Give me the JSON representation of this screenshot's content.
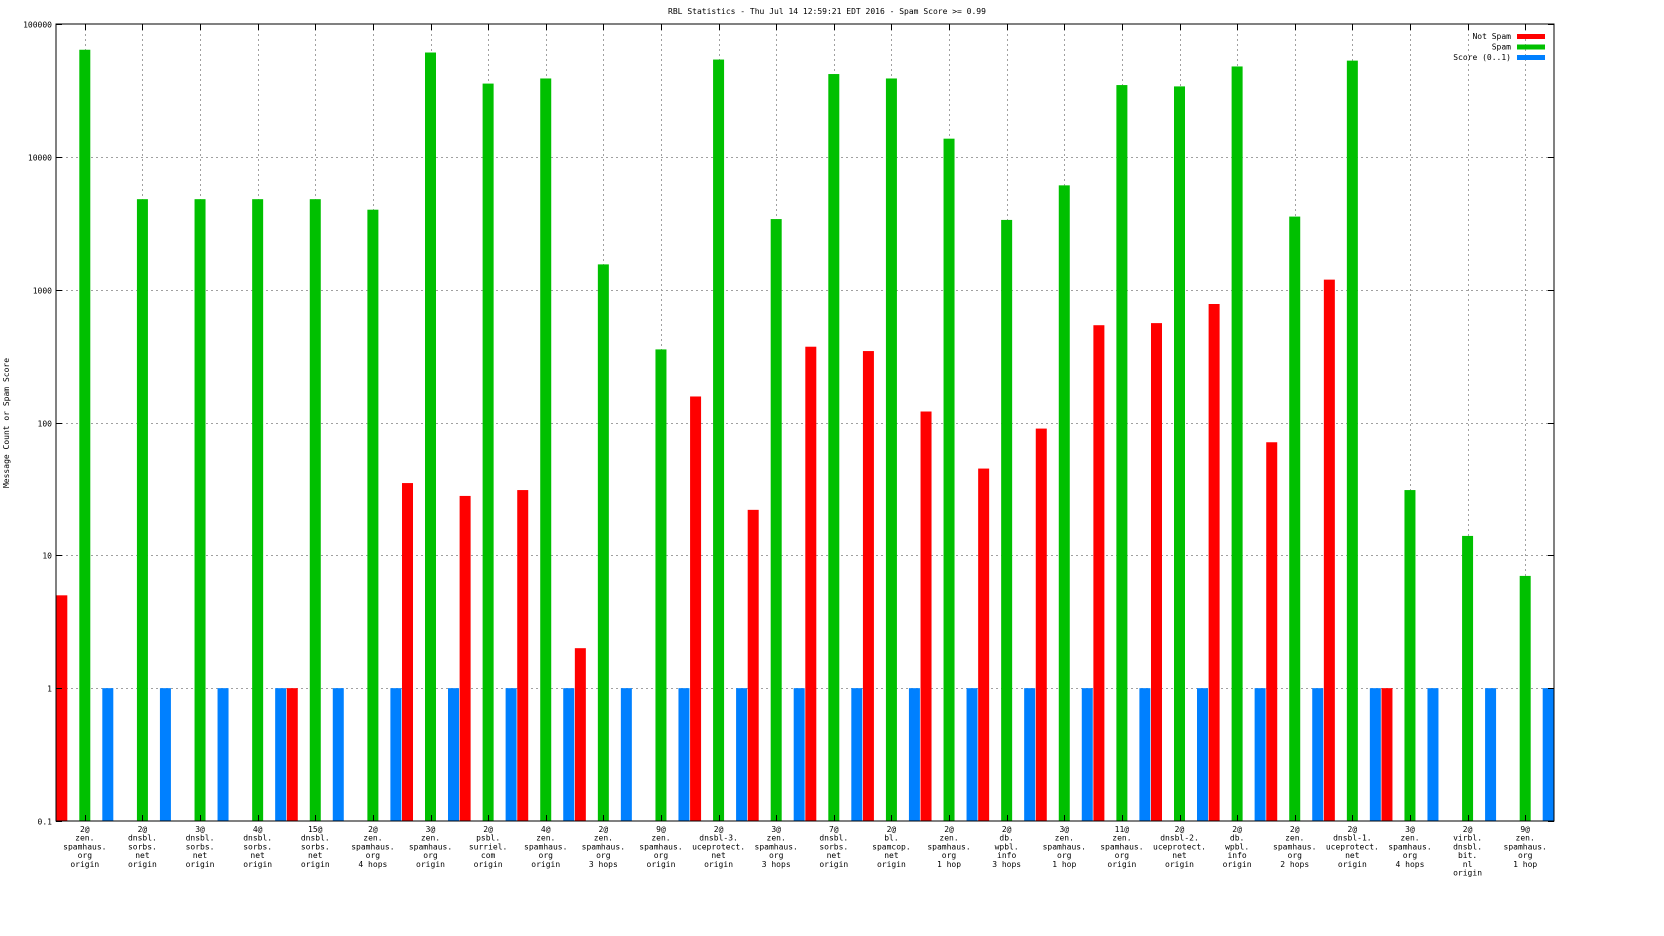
{
  "chart_data": {
    "type": "bar",
    "title": "RBL Statistics - Thu Jul 14 12:59:21 EDT 2016 - Spam Score >= 0.99",
    "xlabel": "",
    "ylabel": "Message Count or Spam Score",
    "yscale": "log",
    "ylim": [
      0.1,
      100000
    ],
    "yticks": [
      {
        "value": 0.1,
        "label": "0.1"
      },
      {
        "value": 1,
        "label": "1"
      },
      {
        "value": 10,
        "label": "10"
      },
      {
        "value": 100,
        "label": "100"
      },
      {
        "value": 1000,
        "label": "1000"
      },
      {
        "value": 10000,
        "label": "10000"
      },
      {
        "value": 100000,
        "label": "100000"
      }
    ],
    "grid": true,
    "legend_position": "top-right",
    "categories": [
      [
        "2@",
        "zen.",
        "spamhaus.",
        "org",
        "origin"
      ],
      [
        "2@",
        "dnsbl.",
        "sorbs.",
        "net",
        "origin"
      ],
      [
        "3@",
        "dnsbl.",
        "sorbs.",
        "net",
        "origin"
      ],
      [
        "4@",
        "dnsbl.",
        "sorbs.",
        "net",
        "origin"
      ],
      [
        "15@",
        "dnsbl.",
        "sorbs.",
        "net",
        "origin"
      ],
      [
        "2@",
        "zen.",
        "spamhaus.",
        "org",
        "4 hops"
      ],
      [
        "3@",
        "zen.",
        "spamhaus.",
        "org",
        "origin"
      ],
      [
        "2@",
        "psbl.",
        "surriel.",
        "com",
        "origin"
      ],
      [
        "4@",
        "zen.",
        "spamhaus.",
        "org",
        "origin"
      ],
      [
        "2@",
        "zen.",
        "spamhaus.",
        "org",
        "3 hops"
      ],
      [
        "9@",
        "zen.",
        "spamhaus.",
        "org",
        "origin"
      ],
      [
        "2@",
        "dnsbl-3.",
        "uceprotect.",
        "net",
        "origin"
      ],
      [
        "3@",
        "zen.",
        "spamhaus.",
        "org",
        "3 hops"
      ],
      [
        "7@",
        "dnsbl.",
        "sorbs.",
        "net",
        "origin"
      ],
      [
        "2@",
        "bl.",
        "spamcop.",
        "net",
        "origin"
      ],
      [
        "2@",
        "zen.",
        "spamhaus.",
        "org",
        "1 hop"
      ],
      [
        "2@",
        "db.",
        "wpbl.",
        "info",
        "3 hops"
      ],
      [
        "3@",
        "zen.",
        "spamhaus.",
        "org",
        "1 hop"
      ],
      [
        "11@",
        "zen.",
        "spamhaus.",
        "org",
        "origin"
      ],
      [
        "2@",
        "dnsbl-2.",
        "uceprotect.",
        "net",
        "origin"
      ],
      [
        "2@",
        "db.",
        "wpbl.",
        "info",
        "origin"
      ],
      [
        "2@",
        "zen.",
        "spamhaus.",
        "org",
        "2 hops"
      ],
      [
        "2@",
        "dnsbl-1.",
        "uceprotect.",
        "net",
        "origin"
      ],
      [
        "3@",
        "zen.",
        "spamhaus.",
        "org",
        "4 hops"
      ],
      [
        "2@",
        "virbl.",
        "dnsbl.",
        "bit.",
        "nl",
        "origin"
      ],
      [
        "9@",
        "zen.",
        "spamhaus.",
        "org",
        "1 hop"
      ]
    ],
    "series": [
      {
        "name": "Not Spam",
        "color": "#ff0000",
        "values": [
          5,
          null,
          null,
          null,
          1,
          null,
          35,
          28,
          31,
          2,
          null,
          157,
          22,
          372,
          345,
          121,
          45,
          90,
          540,
          560,
          780,
          71,
          1190,
          1,
          null,
          null
        ]
      },
      {
        "name": "Spam",
        "color": "#00c000",
        "values": [
          64000,
          4800,
          4800,
          4800,
          4800,
          4000,
          61000,
          35600,
          38900,
          1550,
          355,
          54000,
          3400,
          42000,
          38900,
          13700,
          3350,
          6100,
          34700,
          33900,
          47900,
          3550,
          53000,
          31,
          14,
          7
        ]
      },
      {
        "name": "Score (0..1)",
        "color": "#0080ff",
        "values": [
          1,
          1,
          1,
          1,
          1,
          1,
          1,
          1,
          1,
          1,
          1,
          1,
          1,
          1,
          1,
          1,
          1,
          1,
          1,
          1,
          1,
          1,
          1,
          1,
          1,
          1
        ]
      }
    ]
  }
}
